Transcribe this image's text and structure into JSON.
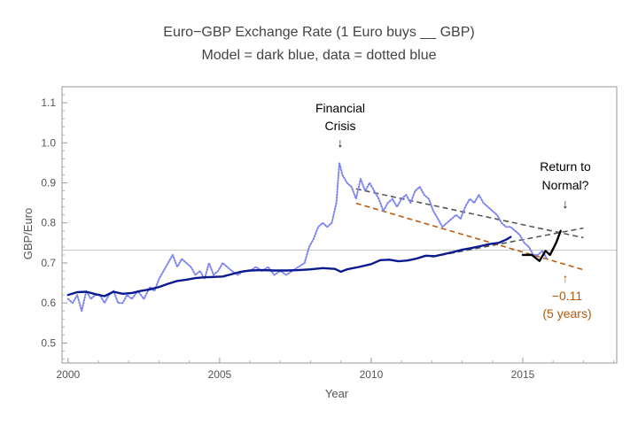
{
  "chart_data": {
    "type": "line",
    "title": "Euro−GBP Exchange Rate (1 Euro buys __ GBP)",
    "subtitle": "Model = dark blue, data = dotted blue",
    "xlabel": "Year",
    "ylabel": "GBP/Euro",
    "xlim": [
      1999.8,
      2018.1
    ],
    "ylim": [
      0.45,
      1.14
    ],
    "x_ticks": [
      2000,
      2005,
      2010,
      2015
    ],
    "x_tick_labels": [
      "2000",
      "2005",
      "2010",
      "2015"
    ],
    "y_ticks": [
      0.5,
      0.6,
      0.7,
      0.8,
      0.9,
      1.0,
      1.1
    ],
    "y_tick_labels": [
      "0.5",
      "0.6",
      "0.7",
      "0.8",
      "0.9",
      "1.0",
      "1.1"
    ],
    "reference_line_y": 0.732,
    "series": [
      {
        "style": "dotted",
        "color": "#7b83ee",
        "points": [
          [
            2000.0,
            0.61
          ],
          [
            2000.15,
            0.6
          ],
          [
            2000.3,
            0.62
          ],
          [
            2000.45,
            0.58
          ],
          [
            2000.6,
            0.63
          ],
          [
            2000.75,
            0.61
          ],
          [
            2000.9,
            0.62
          ],
          [
            2001.05,
            0.62
          ],
          [
            2001.2,
            0.6
          ],
          [
            2001.35,
            0.62
          ],
          [
            2001.5,
            0.63
          ],
          [
            2001.65,
            0.6
          ],
          [
            2001.8,
            0.6
          ],
          [
            2001.95,
            0.62
          ],
          [
            2002.1,
            0.61
          ],
          [
            2002.3,
            0.63
          ],
          [
            2002.5,
            0.61
          ],
          [
            2002.7,
            0.64
          ],
          [
            2002.85,
            0.63
          ],
          [
            2003.0,
            0.66
          ],
          [
            2003.15,
            0.68
          ],
          [
            2003.3,
            0.7
          ],
          [
            2003.45,
            0.72
          ],
          [
            2003.6,
            0.69
          ],
          [
            2003.75,
            0.71
          ],
          [
            2003.9,
            0.7
          ],
          [
            2004.05,
            0.69
          ],
          [
            2004.2,
            0.67
          ],
          [
            2004.35,
            0.68
          ],
          [
            2004.5,
            0.66
          ],
          [
            2004.65,
            0.7
          ],
          [
            2004.8,
            0.67
          ],
          [
            2004.95,
            0.68
          ],
          [
            2005.1,
            0.7
          ],
          [
            2005.25,
            0.69
          ],
          [
            2005.4,
            0.68
          ],
          [
            2005.6,
            0.67
          ],
          [
            2005.8,
            0.68
          ],
          [
            2006.0,
            0.68
          ],
          [
            2006.2,
            0.69
          ],
          [
            2006.4,
            0.68
          ],
          [
            2006.6,
            0.69
          ],
          [
            2006.8,
            0.67
          ],
          [
            2007.0,
            0.68
          ],
          [
            2007.2,
            0.67
          ],
          [
            2007.4,
            0.68
          ],
          [
            2007.6,
            0.69
          ],
          [
            2007.8,
            0.7
          ],
          [
            2007.95,
            0.74
          ],
          [
            2008.1,
            0.76
          ],
          [
            2008.25,
            0.79
          ],
          [
            2008.4,
            0.8
          ],
          [
            2008.55,
            0.79
          ],
          [
            2008.7,
            0.8
          ],
          [
            2008.85,
            0.85
          ],
          [
            2008.95,
            0.95
          ],
          [
            2009.05,
            0.92
          ],
          [
            2009.2,
            0.9
          ],
          [
            2009.35,
            0.89
          ],
          [
            2009.5,
            0.86
          ],
          [
            2009.65,
            0.91
          ],
          [
            2009.8,
            0.88
          ],
          [
            2009.95,
            0.9
          ],
          [
            2010.1,
            0.88
          ],
          [
            2010.25,
            0.86
          ],
          [
            2010.4,
            0.83
          ],
          [
            2010.55,
            0.85
          ],
          [
            2010.7,
            0.86
          ],
          [
            2010.85,
            0.84
          ],
          [
            2011.0,
            0.86
          ],
          [
            2011.15,
            0.87
          ],
          [
            2011.3,
            0.85
          ],
          [
            2011.45,
            0.88
          ],
          [
            2011.6,
            0.89
          ],
          [
            2011.75,
            0.87
          ],
          [
            2011.9,
            0.86
          ],
          [
            2012.05,
            0.83
          ],
          [
            2012.2,
            0.81
          ],
          [
            2012.35,
            0.79
          ],
          [
            2012.5,
            0.8
          ],
          [
            2012.65,
            0.81
          ],
          [
            2012.8,
            0.82
          ],
          [
            2012.95,
            0.81
          ],
          [
            2013.1,
            0.84
          ],
          [
            2013.25,
            0.86
          ],
          [
            2013.4,
            0.85
          ],
          [
            2013.55,
            0.87
          ],
          [
            2013.7,
            0.85
          ],
          [
            2013.85,
            0.84
          ],
          [
            2014.0,
            0.83
          ],
          [
            2014.15,
            0.82
          ],
          [
            2014.3,
            0.8
          ],
          [
            2014.45,
            0.79
          ],
          [
            2014.6,
            0.79
          ],
          [
            2014.75,
            0.78
          ],
          [
            2014.9,
            0.77
          ],
          [
            2015.05,
            0.75
          ],
          [
            2015.2,
            0.74
          ],
          [
            2015.35,
            0.72
          ],
          [
            2015.5,
            0.72
          ],
          [
            2015.65,
            0.73
          ],
          [
            2015.8,
            0.71
          ]
        ]
      },
      {
        "style": "solid",
        "color": "#0a1a8f",
        "points": [
          [
            2000.0,
            0.62
          ],
          [
            2000.3,
            0.627
          ],
          [
            2000.6,
            0.628
          ],
          [
            2000.9,
            0.622
          ],
          [
            2001.2,
            0.617
          ],
          [
            2001.5,
            0.628
          ],
          [
            2001.8,
            0.623
          ],
          [
            2002.1,
            0.625
          ],
          [
            2002.4,
            0.63
          ],
          [
            2002.7,
            0.634
          ],
          [
            2003.0,
            0.64
          ],
          [
            2003.3,
            0.648
          ],
          [
            2003.6,
            0.655
          ],
          [
            2003.9,
            0.658
          ],
          [
            2004.2,
            0.662
          ],
          [
            2004.5,
            0.664
          ],
          [
            2004.8,
            0.665
          ],
          [
            2005.1,
            0.666
          ],
          [
            2005.4,
            0.672
          ],
          [
            2005.7,
            0.678
          ],
          [
            2006.0,
            0.681
          ],
          [
            2006.4,
            0.682
          ],
          [
            2006.8,
            0.681
          ],
          [
            2007.2,
            0.681
          ],
          [
            2007.6,
            0.682
          ],
          [
            2008.0,
            0.684
          ],
          [
            2008.4,
            0.687
          ],
          [
            2008.8,
            0.685
          ],
          [
            2009.0,
            0.678
          ],
          [
            2009.2,
            0.684
          ],
          [
            2009.6,
            0.69
          ],
          [
            2010.0,
            0.697
          ],
          [
            2010.3,
            0.707
          ],
          [
            2010.6,
            0.708
          ],
          [
            2010.9,
            0.704
          ],
          [
            2011.2,
            0.706
          ],
          [
            2011.5,
            0.711
          ],
          [
            2011.8,
            0.718
          ],
          [
            2012.1,
            0.717
          ],
          [
            2012.4,
            0.722
          ],
          [
            2012.7,
            0.727
          ],
          [
            2013.0,
            0.733
          ],
          [
            2013.3,
            0.737
          ],
          [
            2013.6,
            0.742
          ],
          [
            2013.9,
            0.747
          ],
          [
            2014.2,
            0.75
          ],
          [
            2014.45,
            0.758
          ],
          [
            2014.6,
            0.765
          ]
        ]
      },
      {
        "style": "solid",
        "color": "#000000",
        "points": [
          [
            2015.0,
            0.72
          ],
          [
            2015.3,
            0.72
          ],
          [
            2015.55,
            0.705
          ],
          [
            2015.75,
            0.73
          ],
          [
            2015.9,
            0.72
          ],
          [
            2016.1,
            0.75
          ],
          [
            2016.25,
            0.78
          ]
        ]
      }
    ],
    "trend_lines": [
      {
        "color": "#555555",
        "from": [
          2009.5,
          0.885
        ],
        "to": [
          2017.0,
          0.763
        ]
      },
      {
        "color": "#555555",
        "from": [
          2012.0,
          0.715
        ],
        "to": [
          2017.0,
          0.787
        ]
      },
      {
        "color": "#bf5b0a",
        "from": [
          2009.5,
          0.849
        ],
        "to": [
          2017.0,
          0.683
        ]
      }
    ],
    "annotations": [
      {
        "lines": [
          "Financial",
          "Crisis"
        ],
        "arrow": "↓",
        "color": "#000000"
      },
      {
        "lines": [
          "Return to",
          "Normal?"
        ],
        "arrow": "↓",
        "color": "#000000"
      },
      {
        "lines": [
          "−0.11",
          "(5 years)"
        ],
        "arrow": "↑",
        "color": "#b35a0a"
      }
    ]
  }
}
